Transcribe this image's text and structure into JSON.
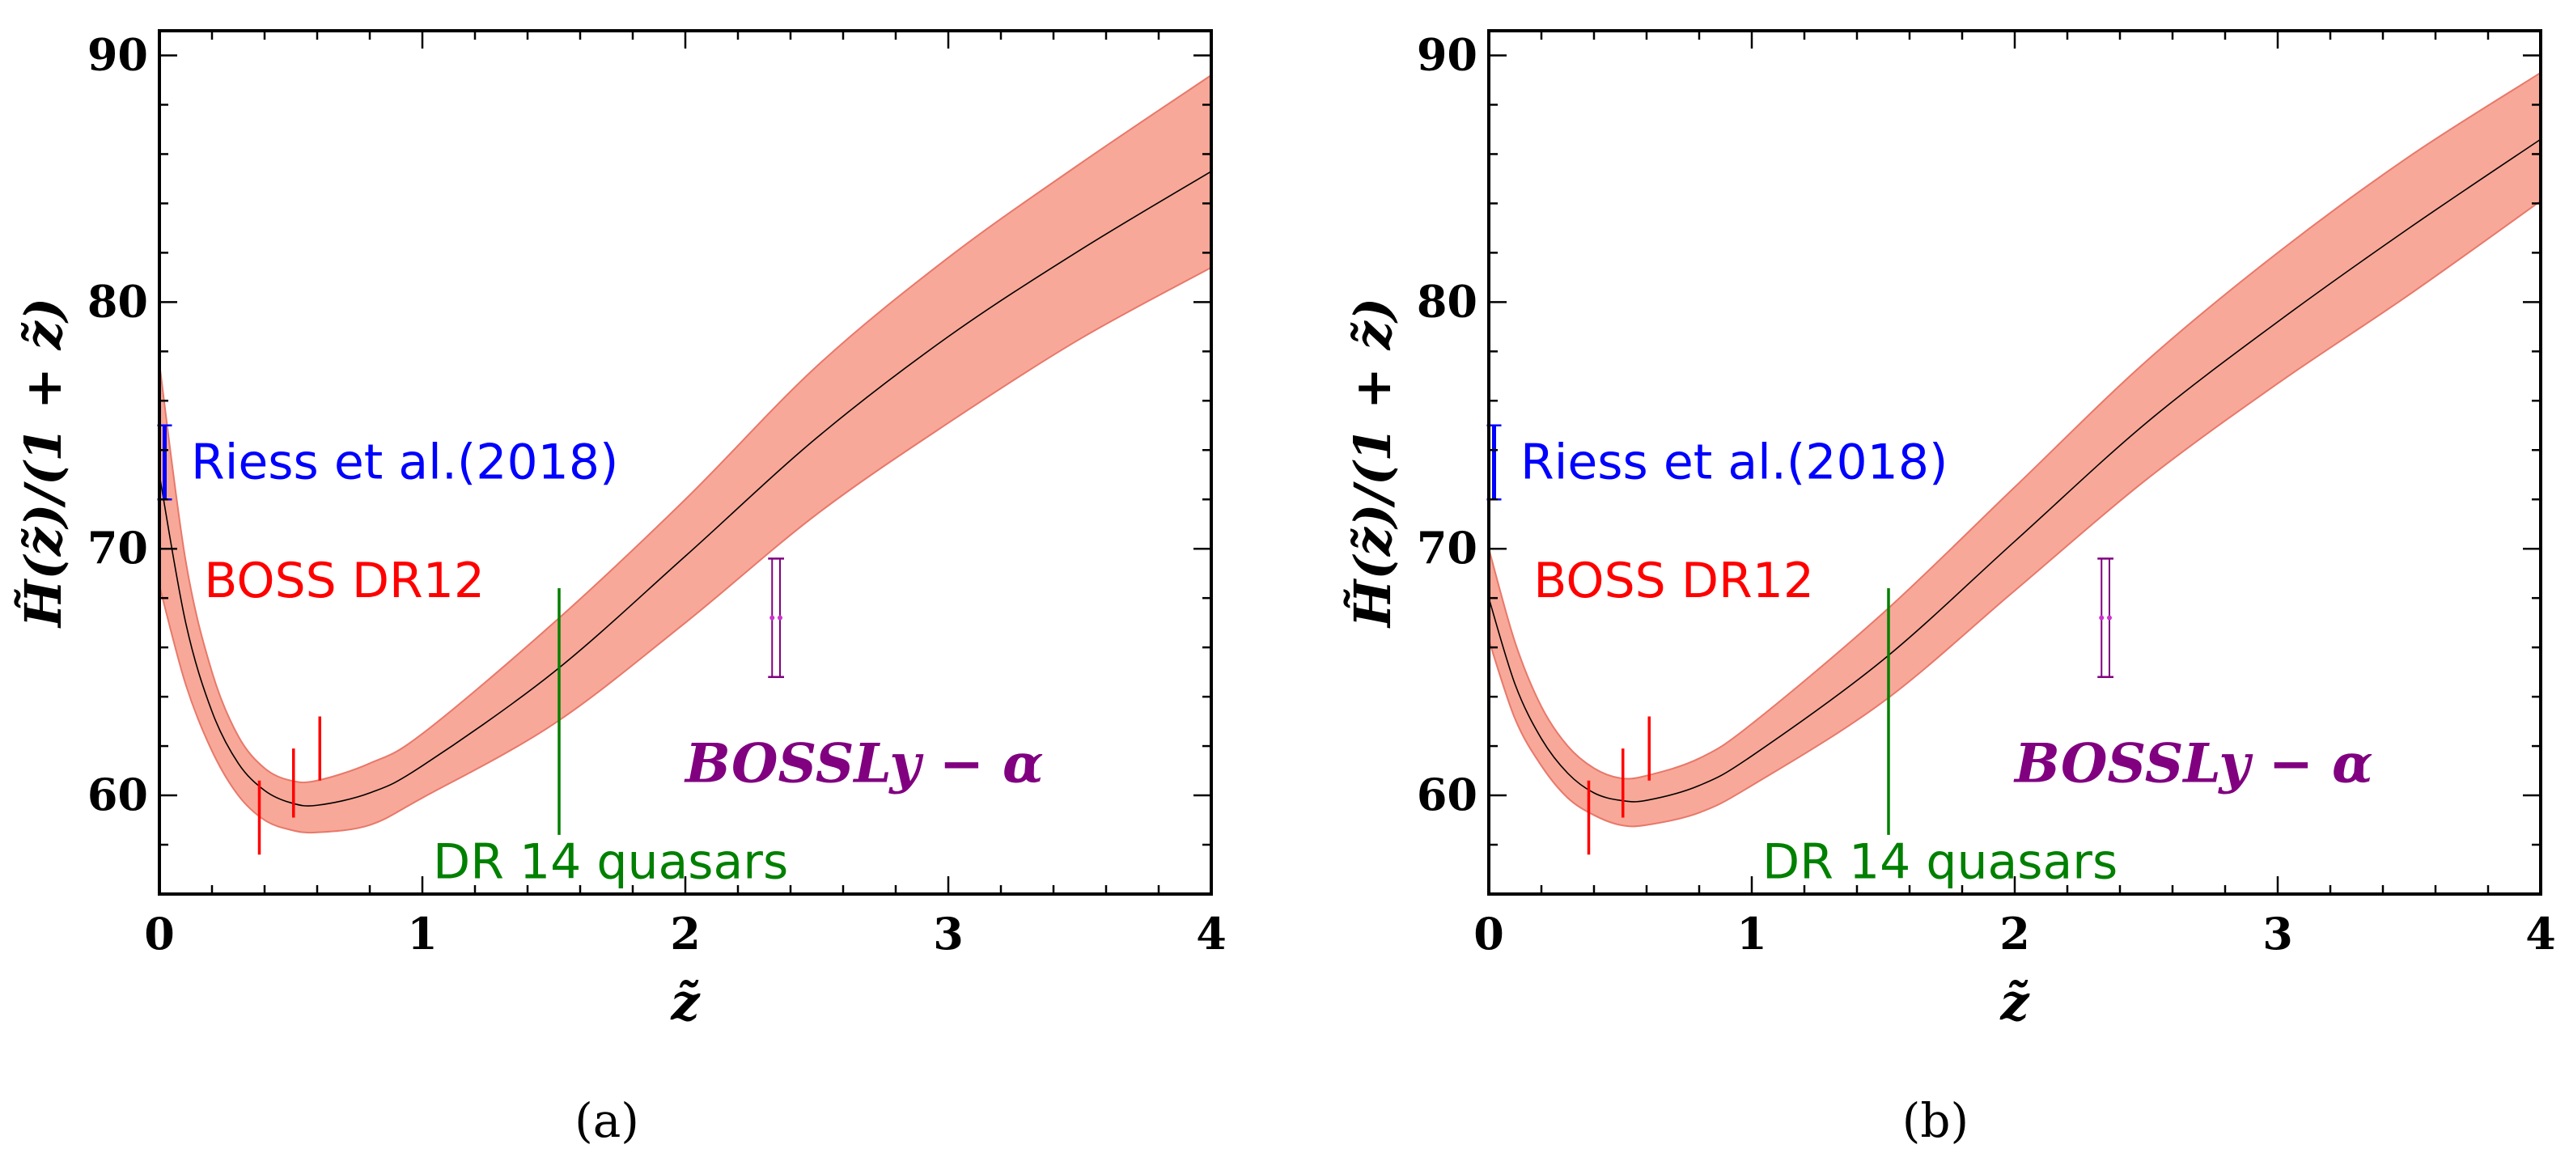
{
  "colors": {
    "band": "#f8a898",
    "band_edge": "#e8786a",
    "curve": "#000000",
    "riess": "#0000ff",
    "boss": "#ff0000",
    "dr14": "#008000",
    "lya": "#800080",
    "lya_pts": "#cc33cc"
  },
  "chart_data": [
    {
      "type": "line",
      "panel_label": "(a)",
      "xlabel": "z̃",
      "ylabel": "H̃(z̃)/(1 + z̃)",
      "xlim": [
        0,
        4
      ],
      "ylim": [
        56,
        91
      ],
      "xticks": [
        0,
        1,
        2,
        3,
        4
      ],
      "xtick_labels": [
        "0",
        "1",
        "2",
        "3",
        "4"
      ],
      "yticks": [
        60,
        70,
        80,
        90
      ],
      "ytick_labels": [
        "60",
        "70",
        "80",
        "90"
      ],
      "series": [
        {
          "name": "mean",
          "x": [
            0,
            0.1,
            0.2,
            0.3,
            0.4,
            0.5,
            0.6,
            0.8,
            1.0,
            1.5,
            2.0,
            2.5,
            3.0,
            3.5,
            4.0
          ],
          "y": [
            73.0,
            67.0,
            63.4,
            61.3,
            60.2,
            59.7,
            59.6,
            60.1,
            61.2,
            65.0,
            69.7,
            74.5,
            78.6,
            82.1,
            85.3
          ]
        },
        {
          "name": "band_upper",
          "x": [
            0,
            0.1,
            0.2,
            0.3,
            0.4,
            0.5,
            0.6,
            0.8,
            1.0,
            1.5,
            2.0,
            2.5,
            3.0,
            3.5,
            4.0
          ],
          "y": [
            77.5,
            69.5,
            65.0,
            62.4,
            61.1,
            60.6,
            60.6,
            61.3,
            62.5,
            67.0,
            72.0,
            77.4,
            81.8,
            85.6,
            89.2
          ]
        },
        {
          "name": "band_lower",
          "x": [
            0,
            0.1,
            0.2,
            0.3,
            0.4,
            0.5,
            0.6,
            0.8,
            1.0,
            1.5,
            2.0,
            2.5,
            3.0,
            3.5,
            4.0
          ],
          "y": [
            68.5,
            64.5,
            61.8,
            60.0,
            59.0,
            58.6,
            58.5,
            58.8,
            59.9,
            62.9,
            67.0,
            71.4,
            75.1,
            78.5,
            81.4
          ]
        }
      ],
      "errorbars": [
        {
          "group": "riess",
          "x": 0.02,
          "y": 73.5,
          "ylow": 72.0,
          "yhigh": 75.0
        },
        {
          "group": "boss",
          "x": 0.38,
          "y": 59.1,
          "ylow": 57.6,
          "yhigh": 60.6
        },
        {
          "group": "boss",
          "x": 0.51,
          "y": 60.5,
          "ylow": 59.1,
          "yhigh": 61.9
        },
        {
          "group": "boss",
          "x": 0.61,
          "y": 61.9,
          "ylow": 60.6,
          "yhigh": 63.2
        },
        {
          "group": "dr14",
          "x": 1.52,
          "y": 63.4,
          "ylow": 58.4,
          "yhigh": 68.4
        },
        {
          "group": "lya",
          "x": 2.33,
          "y": 67.2,
          "ylow": 64.8,
          "yhigh": 69.6
        },
        {
          "group": "lya",
          "x": 2.36,
          "y": 67.2,
          "ylow": 64.8,
          "yhigh": 69.6
        }
      ],
      "annotations": [
        {
          "group": "riess",
          "text": "Riess et al.(2018)",
          "x": 0.12,
          "y": 73.5,
          "style": "annot"
        },
        {
          "group": "boss",
          "text": "BOSS DR12",
          "x": 0.17,
          "y": 68.7,
          "style": "annot"
        },
        {
          "group": "dr14",
          "text": "DR 14 quasars",
          "x": 1.04,
          "y": 57.3,
          "style": "annot"
        },
        {
          "group": "lya",
          "text": "BOSSLy − α",
          "x": 2.0,
          "y": 61.2,
          "style": "annot-bold"
        }
      ]
    },
    {
      "type": "line",
      "panel_label": "(b)",
      "xlabel": "z̃",
      "ylabel": "H̃(z̃)/(1 + z̃)",
      "xlim": [
        0,
        4
      ],
      "ylim": [
        56,
        91
      ],
      "xticks": [
        0,
        1,
        2,
        3,
        4
      ],
      "xtick_labels": [
        "0",
        "1",
        "2",
        "3",
        "4"
      ],
      "yticks": [
        60,
        70,
        80,
        90
      ],
      "ytick_labels": [
        "60",
        "70",
        "80",
        "90"
      ],
      "series": [
        {
          "name": "mean",
          "x": [
            0,
            0.1,
            0.2,
            0.3,
            0.4,
            0.5,
            0.6,
            0.8,
            1.0,
            1.5,
            2.0,
            2.5,
            3.0,
            3.5,
            4.0
          ],
          "y": [
            68.0,
            64.5,
            62.3,
            60.9,
            60.1,
            59.8,
            59.8,
            60.4,
            61.6,
            65.5,
            70.3,
            75.1,
            79.2,
            83.0,
            86.6
          ]
        },
        {
          "name": "band_upper",
          "x": [
            0,
            0.1,
            0.2,
            0.3,
            0.4,
            0.5,
            0.6,
            0.8,
            1.0,
            1.5,
            2.0,
            2.5,
            3.0,
            3.5,
            4.0
          ],
          "y": [
            70.0,
            66.2,
            63.6,
            62.0,
            61.1,
            60.7,
            60.8,
            61.5,
            62.9,
            67.4,
            72.5,
            77.6,
            82.0,
            85.9,
            89.3
          ]
        },
        {
          "name": "band_lower",
          "x": [
            0,
            0.1,
            0.2,
            0.3,
            0.4,
            0.5,
            0.6,
            0.8,
            1.0,
            1.5,
            2.0,
            2.5,
            3.0,
            3.5,
            4.0
          ],
          "y": [
            66.3,
            63.1,
            61.2,
            59.9,
            59.2,
            58.8,
            58.8,
            59.3,
            60.4,
            63.8,
            68.3,
            72.8,
            76.7,
            80.3,
            84.1
          ]
        }
      ],
      "errorbars": [
        {
          "group": "riess",
          "x": 0.02,
          "y": 73.5,
          "ylow": 72.0,
          "yhigh": 75.0
        },
        {
          "group": "boss",
          "x": 0.38,
          "y": 59.1,
          "ylow": 57.6,
          "yhigh": 60.6
        },
        {
          "group": "boss",
          "x": 0.51,
          "y": 60.5,
          "ylow": 59.1,
          "yhigh": 61.9
        },
        {
          "group": "boss",
          "x": 0.61,
          "y": 61.9,
          "ylow": 60.6,
          "yhigh": 63.2
        },
        {
          "group": "dr14",
          "x": 1.52,
          "y": 63.4,
          "ylow": 58.4,
          "yhigh": 68.4
        },
        {
          "group": "lya",
          "x": 2.33,
          "y": 67.2,
          "ylow": 64.8,
          "yhigh": 69.6
        },
        {
          "group": "lya",
          "x": 2.36,
          "y": 67.2,
          "ylow": 64.8,
          "yhigh": 69.6
        }
      ],
      "annotations": [
        {
          "group": "riess",
          "text": "Riess et al.(2018)",
          "x": 0.12,
          "y": 73.5,
          "style": "annot"
        },
        {
          "group": "boss",
          "text": "BOSS DR12",
          "x": 0.17,
          "y": 68.7,
          "style": "annot"
        },
        {
          "group": "dr14",
          "text": "DR 14 quasars",
          "x": 1.04,
          "y": 57.3,
          "style": "annot"
        },
        {
          "group": "lya",
          "text": "BOSSLy − α",
          "x": 2.0,
          "y": 61.2,
          "style": "annot-bold"
        }
      ]
    }
  ]
}
